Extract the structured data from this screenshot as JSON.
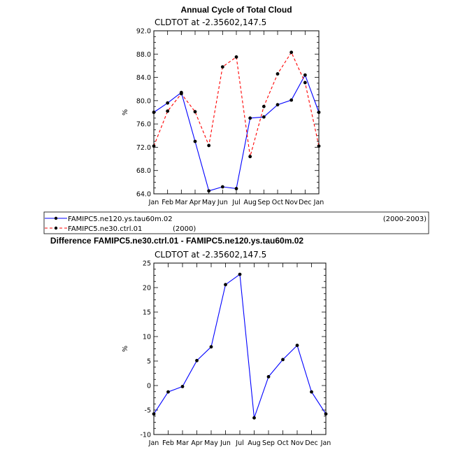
{
  "chart_data": [
    {
      "type": "line",
      "title": "Annual Cycle of Total Cloud",
      "subtitle": "CLDTOT at -2.35602,147.5",
      "xlabel": "",
      "ylabel": "%",
      "categories": [
        "Jan",
        "Feb",
        "Mar",
        "Apr",
        "May",
        "Jun",
        "Jul",
        "Aug",
        "Sep",
        "Oct",
        "Nov",
        "Dec",
        "Jan"
      ],
      "ylim": [
        64,
        92
      ],
      "yticks": [
        "64.0",
        "68.0",
        "72.0",
        "76.0",
        "80.0",
        "84.0",
        "88.0",
        "92.0"
      ],
      "grid": false,
      "series": [
        {
          "name": "FAMIPC5.ne120.ys.tau60m.02",
          "period": "(2000-2003)",
          "color": "#0000ff",
          "dash": "solid",
          "values": [
            78.0,
            79.6,
            81.4,
            73.0,
            64.5,
            65.2,
            64.9,
            77.0,
            77.2,
            79.3,
            80.1,
            84.4,
            78.0
          ]
        },
        {
          "name": "FAMIPC5.ne30.ctrl.01",
          "period": "(2000)",
          "color": "#ff0000",
          "dash": "dashed",
          "values": [
            72.2,
            78.2,
            81.2,
            78.1,
            72.3,
            85.8,
            87.5,
            70.4,
            79.0,
            84.6,
            88.3,
            83.1,
            72.2
          ]
        }
      ]
    },
    {
      "type": "line",
      "title": "Difference FAMIPC5.ne30.ctrl.01 - FAMIPC5.ne120.ys.tau60m.02",
      "subtitle": "CLDTOT at -2.35602,147.5",
      "xlabel": "",
      "ylabel": "%",
      "categories": [
        "Jan",
        "Feb",
        "Mar",
        "Apr",
        "May",
        "Jun",
        "Jul",
        "Aug",
        "Sep",
        "Oct",
        "Nov",
        "Dec",
        "Jan"
      ],
      "ylim": [
        -10,
        25
      ],
      "yticks": [
        "-10",
        "-5",
        "0",
        "5",
        "10",
        "15",
        "20",
        "25"
      ],
      "grid": false,
      "series": [
        {
          "name": "",
          "color": "#0000ff",
          "dash": "solid",
          "values": [
            -5.8,
            -1.3,
            -0.2,
            5.1,
            7.9,
            20.6,
            22.7,
            -6.6,
            1.8,
            5.3,
            8.2,
            -1.3,
            -5.8
          ]
        }
      ]
    }
  ]
}
